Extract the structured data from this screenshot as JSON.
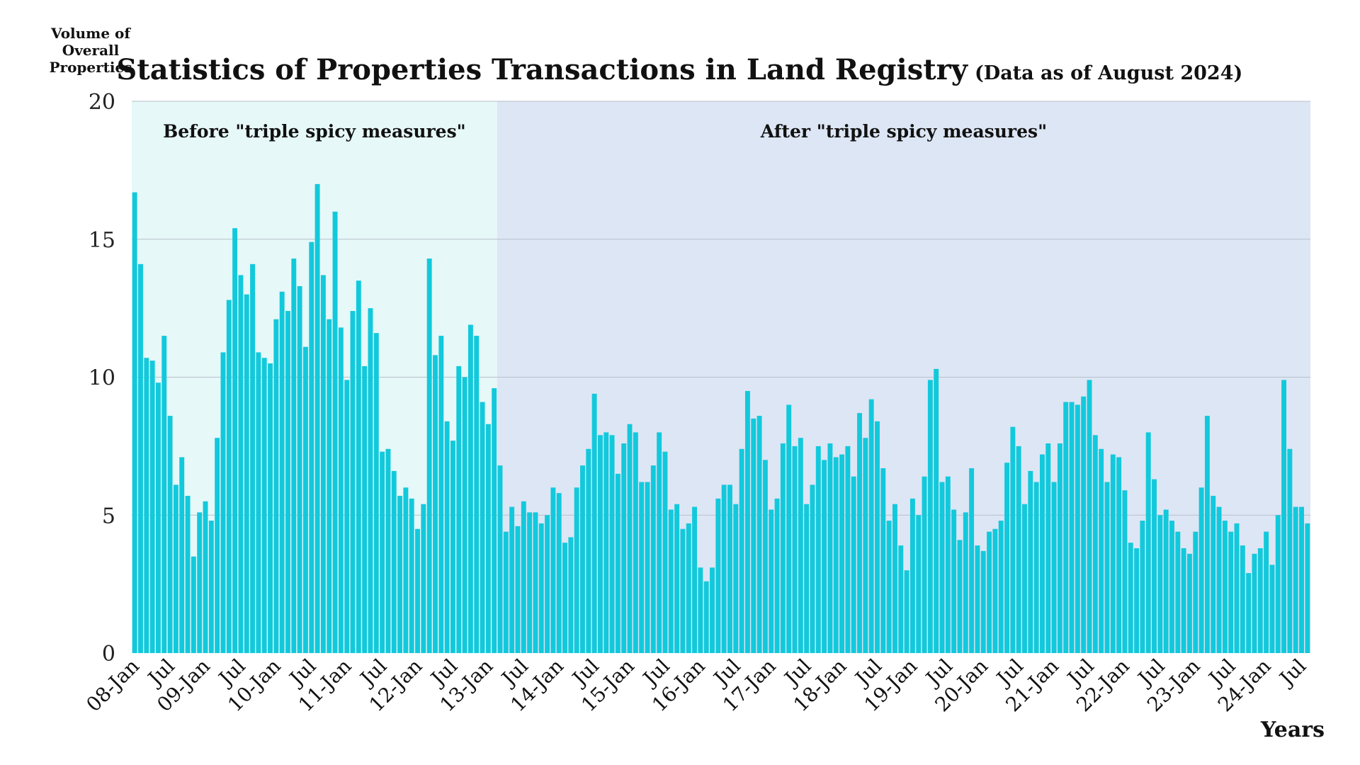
{
  "chart_data": {
    "type": "bar",
    "title": "Statistics of Properties Transactions in Land Registry",
    "subtitle": "(Data as of August 2024)",
    "ylabel": "Volume of Overall Properties",
    "ylabel_lines": [
      "Volume of",
      "Overall",
      "Properties"
    ],
    "xlabel": "Years",
    "ylim": [
      0,
      20
    ],
    "yticks": [
      0,
      5,
      10,
      15,
      20
    ],
    "grid": true,
    "bar_color": "#12c9dc",
    "regions": [
      {
        "label": "Before \"triple spicy measures\"",
        "start_index": 0,
        "end_index": 62,
        "color": "#e6f8f8"
      },
      {
        "label": "After \"triple spicy measures\"",
        "start_index": 62,
        "end_index": 200,
        "color": "#dde6f4"
      }
    ],
    "tick_labels": [
      {
        "index": 0,
        "label": "08-Jan"
      },
      {
        "index": 6,
        "label": "Jul"
      },
      {
        "index": 12,
        "label": "09-Jan"
      },
      {
        "index": 18,
        "label": "Jul"
      },
      {
        "index": 24,
        "label": "10-Jan"
      },
      {
        "index": 30,
        "label": "Jul"
      },
      {
        "index": 36,
        "label": "11-Jan"
      },
      {
        "index": 42,
        "label": "Jul"
      },
      {
        "index": 48,
        "label": "12-Jan"
      },
      {
        "index": 54,
        "label": "Jul"
      },
      {
        "index": 60,
        "label": "13-Jan"
      },
      {
        "index": 66,
        "label": "Jul"
      },
      {
        "index": 72,
        "label": "14-Jan"
      },
      {
        "index": 78,
        "label": "Jul"
      },
      {
        "index": 84,
        "label": "15-Jan"
      },
      {
        "index": 90,
        "label": "Jul"
      },
      {
        "index": 96,
        "label": "16-Jan"
      },
      {
        "index": 102,
        "label": "Jul"
      },
      {
        "index": 108,
        "label": "17-Jan"
      },
      {
        "index": 114,
        "label": "Jul"
      },
      {
        "index": 120,
        "label": "18-Jan"
      },
      {
        "index": 126,
        "label": "Jul"
      },
      {
        "index": 132,
        "label": "19-Jan"
      },
      {
        "index": 138,
        "label": "Jul"
      },
      {
        "index": 144,
        "label": "20-Jan"
      },
      {
        "index": 150,
        "label": "Jul"
      },
      {
        "index": 156,
        "label": "21-Jan"
      },
      {
        "index": 162,
        "label": "Jul"
      },
      {
        "index": 168,
        "label": "22-Jan"
      },
      {
        "index": 174,
        "label": "Jul"
      },
      {
        "index": 180,
        "label": "23-Jan"
      },
      {
        "index": 186,
        "label": "Jul"
      },
      {
        "index": 192,
        "label": "24-Jan"
      },
      {
        "index": 198,
        "label": "Jul"
      }
    ],
    "values": [
      16.7,
      14.1,
      10.7,
      10.6,
      9.8,
      11.5,
      8.6,
      6.1,
      7.1,
      5.7,
      3.5,
      5.1,
      5.5,
      4.8,
      7.8,
      10.9,
      12.8,
      15.4,
      13.7,
      13.0,
      14.1,
      10.9,
      10.7,
      10.5,
      12.1,
      13.1,
      12.4,
      14.3,
      13.3,
      11.1,
      14.9,
      17.0,
      13.7,
      12.1,
      16.0,
      11.8,
      9.9,
      12.4,
      13.5,
      10.4,
      12.5,
      11.6,
      7.3,
      7.4,
      6.6,
      5.7,
      6.0,
      5.6,
      4.5,
      5.4,
      14.3,
      10.8,
      11.5,
      8.4,
      7.7,
      10.4,
      10.0,
      11.9,
      11.5,
      9.1,
      8.3,
      9.6,
      6.8,
      4.4,
      5.3,
      4.6,
      5.5,
      5.1,
      5.1,
      4.7,
      5.0,
      6.0,
      5.8,
      4.0,
      4.2,
      6.0,
      6.8,
      7.4,
      9.4,
      7.9,
      8.0,
      7.9,
      6.5,
      7.6,
      8.3,
      8.0,
      6.2,
      6.2,
      6.8,
      8.0,
      7.3,
      5.2,
      5.4,
      4.5,
      4.7,
      5.3,
      3.1,
      2.6,
      3.1,
      5.6,
      6.1,
      6.1,
      5.4,
      7.4,
      9.5,
      8.5,
      8.6,
      7.0,
      5.2,
      5.6,
      7.6,
      9.0,
      7.5,
      7.8,
      5.4,
      6.1,
      7.5,
      7.0,
      7.6,
      7.1,
      7.2,
      7.5,
      6.4,
      8.7,
      7.8,
      9.2,
      8.4,
      6.7,
      4.8,
      5.4,
      3.9,
      3.0,
      5.6,
      5.0,
      6.4,
      9.9,
      10.3,
      6.2,
      6.4,
      5.2,
      4.1,
      5.1,
      6.7,
      3.9,
      3.7,
      4.4,
      4.5,
      4.8,
      6.9,
      8.2,
      7.5,
      5.4,
      6.6,
      6.2,
      7.2,
      7.6,
      6.2,
      7.6,
      9.1,
      9.1,
      9.0,
      9.3,
      9.9,
      7.9,
      7.4,
      6.2,
      7.2,
      7.1,
      5.9,
      4.0,
      3.8,
      4.8,
      8.0,
      6.3,
      5.0,
      5.2,
      4.8,
      4.4,
      3.8,
      3.6,
      4.4,
      6.0,
      8.6,
      5.7,
      5.3,
      4.8,
      4.4,
      4.7,
      3.9,
      2.9,
      3.6,
      3.8,
      4.4,
      3.2,
      5.0,
      9.9,
      7.4,
      5.3,
      5.3,
      4.7
    ]
  }
}
